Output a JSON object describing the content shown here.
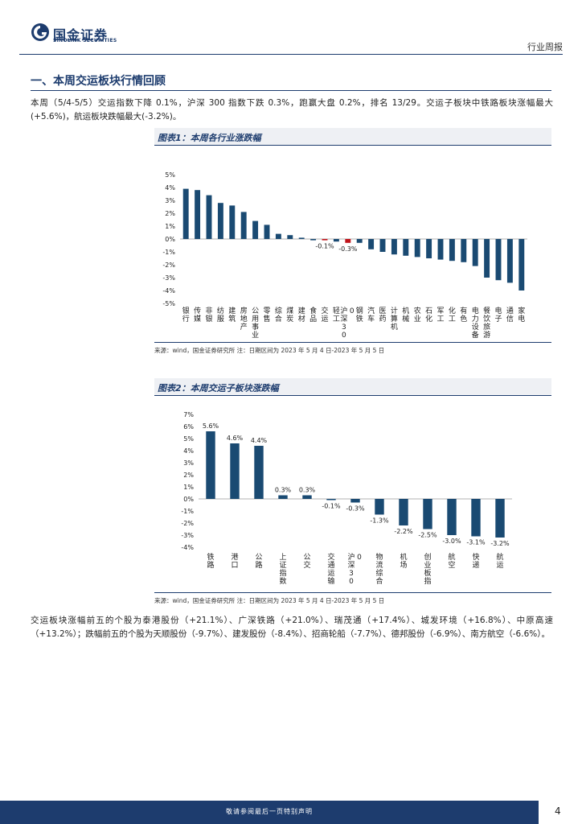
{
  "header": {
    "logo_cn": "国金证券",
    "logo_en": "SINOLINK SECURITIES",
    "doc_type": "行业周报"
  },
  "section": {
    "title": "一、本周交运板块行情回顾"
  },
  "paragraphs": {
    "p1": "本周（5/4-5/5）交运指数下降 0.1%，沪深 300 指数下跌 0.3%，跑赢大盘 0.2%，排名 13/29。交运子板块中铁路板块涨幅最大(+5.6%)，航运板块跌幅最大(-3.2%)。",
    "p2": "交运板块涨幅前五的个股为泰港股份（+21.1%）、广深铁路（+21.0%）、瑞茂通（+17.4%）、城发环境（+16.8%）、中原高速（+13.2%）；跌幅前五的个股为天顺股份（-9.7%）、建发股份（-8.4%）、招商轮船（-7.7%）、德邦股份（-6.9%）、南方航空（-6.6%）。"
  },
  "figures": {
    "fig1_title": "图表1：本周各行业涨跌幅",
    "fig2_title": "图表2：本周交运子板块涨跌幅",
    "source1": "来源：wind，国金证券研究所    注：日期区间为 2023 年 5 月 4 日-2023 年 5 月 5 日",
    "source2": "来源：wind，国金证券研究所    注：日期区间为 2023 年 5 月 4 日-2023 年 5 月 5 日"
  },
  "footer": {
    "text": "敬请参阅最后一页特别声明",
    "page": "4"
  },
  "colors": {
    "bar": "#1a4a72",
    "highlight": "#c0141b",
    "brand": "#1d3c6e"
  },
  "chart_data": [
    {
      "type": "bar",
      "title": "图表1：本周各行业涨跌幅",
      "categories": [
        "银行",
        "传媒",
        "非银",
        "纺服",
        "建筑",
        "房地产",
        "公用事业",
        "零售",
        "综合",
        "煤炭",
        "建材",
        "食品",
        "交运",
        "轻工",
        "沪深300",
        "钢铁",
        "汽车",
        "医药",
        "计算机",
        "机械",
        "农业",
        "石化",
        "军工",
        "化工",
        "有色",
        "电力设备",
        "餐饮旅游",
        "电子",
        "通信",
        "家电"
      ],
      "values": [
        3.9,
        3.8,
        3.4,
        2.8,
        2.6,
        2.1,
        1.4,
        1.1,
        0.4,
        0.3,
        0.1,
        -0.1,
        -0.1,
        -0.2,
        -0.3,
        -0.3,
        -0.8,
        -1.0,
        -1.2,
        -1.3,
        -1.4,
        -1.5,
        -1.6,
        -1.7,
        -1.8,
        -2.1,
        -3.0,
        -3.2,
        -3.4,
        -4.0
      ],
      "highlight": [
        "交运",
        "沪深300"
      ],
      "data_labels": {
        "交运": "-0.1%",
        "沪深300": "-0.3%"
      },
      "ylim": [
        -5,
        5
      ],
      "yticks": [
        "5%",
        "4%",
        "3%",
        "2%",
        "1%",
        "0%",
        "-1%",
        "-2%",
        "-3%",
        "-4%",
        "-5%"
      ],
      "xlabel": "",
      "ylabel": ""
    },
    {
      "type": "bar",
      "title": "图表2：本周交运子板块涨跌幅",
      "categories": [
        "铁路",
        "港口",
        "公路",
        "上证指数",
        "公交",
        "交通运输",
        "沪深300",
        "物流综合",
        "机场",
        "创业板指",
        "航空",
        "快递",
        "航运"
      ],
      "values": [
        5.6,
        4.6,
        4.4,
        0.3,
        0.3,
        -0.1,
        -0.3,
        -1.3,
        -2.2,
        -2.5,
        -3.0,
        -3.1,
        -3.2
      ],
      "labels": [
        "5.6%",
        "4.6%",
        "4.4%",
        "0.3%",
        "0.3%",
        "-0.1%",
        "-0.3%",
        "-1.3%",
        "-2.2%",
        "-2.5%",
        "-3.0%",
        "-3.1%",
        "-3.2%"
      ],
      "ylim": [
        -4,
        7
      ],
      "yticks": [
        "7%",
        "6%",
        "5%",
        "4%",
        "3%",
        "2%",
        "1%",
        "0%",
        "-1%",
        "-2%",
        "-3%",
        "-4%"
      ],
      "xlabel": "",
      "ylabel": ""
    }
  ]
}
